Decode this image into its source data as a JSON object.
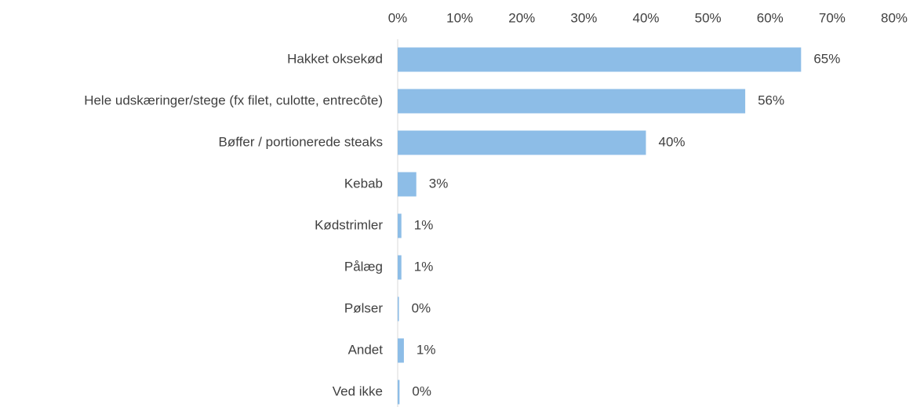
{
  "chart_data": {
    "type": "barh",
    "categories": [
      "Hakket oksekød",
      "Hele udskæringer/stege (fx filet, culotte, entrecôte)",
      "Bøffer / portionerede steaks",
      "Kebab",
      "Kødstrimler",
      "Pålæg",
      "Pølser",
      "Andet",
      "Ved ikke"
    ],
    "values": [
      65,
      56,
      40,
      3,
      0.6,
      0.6,
      0.2,
      1,
      0.3
    ],
    "value_labels": [
      "65%",
      "56%",
      "40%",
      "3%",
      "1%",
      "1%",
      "0%",
      "1%",
      "0%"
    ],
    "color": "#8dbde7",
    "xlim": [
      0,
      80
    ],
    "xticks": [
      {
        "value": 0,
        "label": "0%"
      },
      {
        "value": 10,
        "label": "10%"
      },
      {
        "value": 20,
        "label": "20%"
      },
      {
        "value": 30,
        "label": "30%"
      },
      {
        "value": 40,
        "label": "40%"
      },
      {
        "value": 50,
        "label": "50%"
      },
      {
        "value": 60,
        "label": "60%"
      },
      {
        "value": 70,
        "label": "70%"
      },
      {
        "value": 80,
        "label": "80%"
      }
    ],
    "grid": false
  }
}
